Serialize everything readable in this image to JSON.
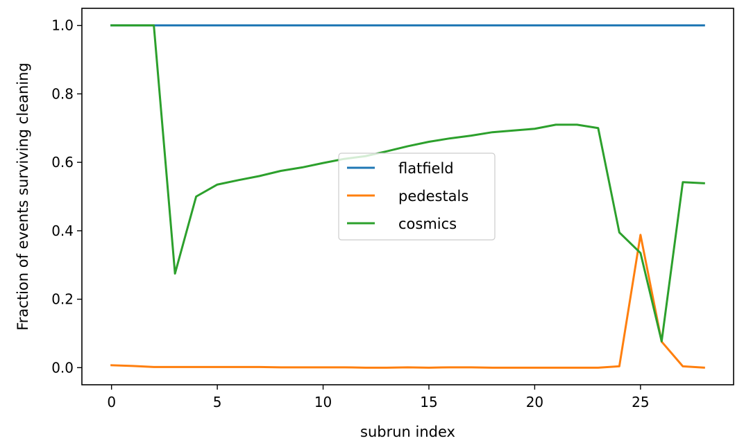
{
  "chart_data": {
    "type": "line",
    "xlabel": "subrun index",
    "ylabel": "Fraction of events surviving cleaning",
    "xlim": [
      -1.4,
      29.4
    ],
    "ylim": [
      -0.05,
      1.05
    ],
    "xticks": [
      0,
      5,
      10,
      15,
      20,
      25
    ],
    "xtick_labels": [
      "0",
      "5",
      "10",
      "15",
      "20",
      "25"
    ],
    "yticks": [
      0.0,
      0.2,
      0.4,
      0.6,
      0.8,
      1.0
    ],
    "ytick_labels": [
      "0.0",
      "0.2",
      "0.4",
      "0.6",
      "0.8",
      "1.0"
    ],
    "grid": false,
    "legend_position": "center",
    "x": [
      0,
      1,
      2,
      3,
      4,
      5,
      6,
      7,
      8,
      9,
      10,
      11,
      12,
      13,
      14,
      15,
      16,
      17,
      18,
      19,
      20,
      21,
      22,
      23,
      24,
      25,
      26,
      27,
      28
    ],
    "series": [
      {
        "name": "flatfield",
        "color": "#1f77b4",
        "values": [
          1.0,
          1.0,
          1.0,
          1.0,
          1.0,
          1.0,
          1.0,
          1.0,
          1.0,
          1.0,
          1.0,
          1.0,
          1.0,
          1.0,
          1.0,
          1.0,
          1.0,
          1.0,
          1.0,
          1.0,
          1.0,
          1.0,
          1.0,
          1.0,
          1.0,
          1.0,
          1.0,
          1.0,
          1.0
        ]
      },
      {
        "name": "pedestals",
        "color": "#ff7f0e",
        "values": [
          0.007,
          0.005,
          0.002,
          0.002,
          0.002,
          0.002,
          0.002,
          0.002,
          0.001,
          0.001,
          0.001,
          0.001,
          0.0,
          0.0,
          0.001,
          0.0,
          0.001,
          0.001,
          0.0,
          0.0,
          0.0,
          0.0,
          0.0,
          0.0,
          0.004,
          0.388,
          0.076,
          0.004,
          0.0
        ]
      },
      {
        "name": "cosmics",
        "color": "#2ca02c",
        "values": [
          1.0,
          1.0,
          1.0,
          0.275,
          0.5,
          0.535,
          0.548,
          0.56,
          0.575,
          0.585,
          0.598,
          0.61,
          0.618,
          0.632,
          0.647,
          0.66,
          0.67,
          0.678,
          0.688,
          0.693,
          0.698,
          0.71,
          0.71,
          0.7,
          0.395,
          0.335,
          0.077,
          0.542,
          0.539
        ]
      }
    ]
  }
}
